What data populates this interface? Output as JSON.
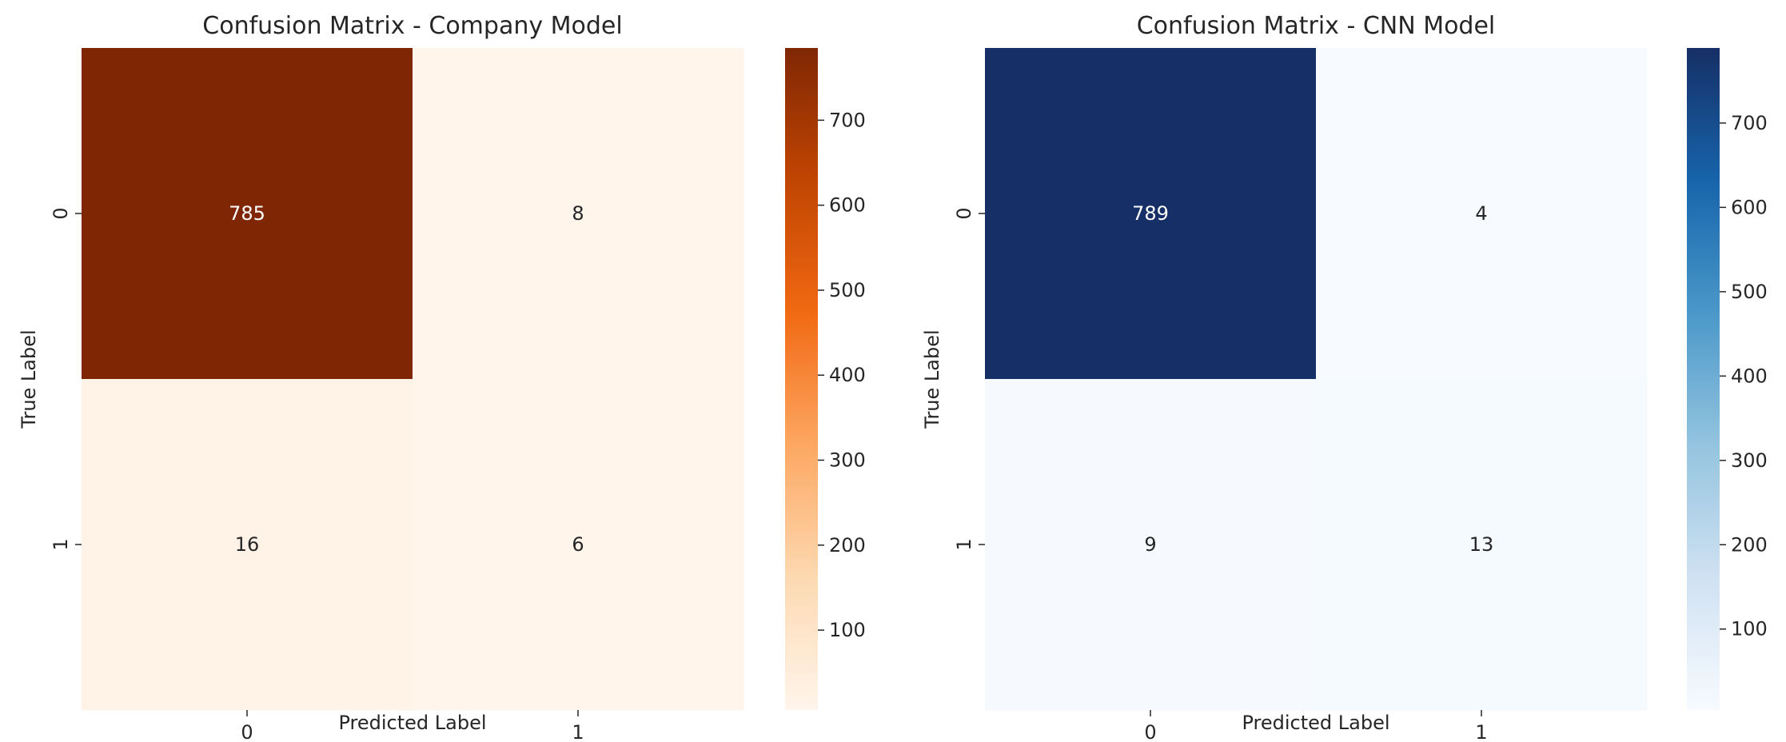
{
  "chart_data": [
    {
      "type": "heatmap",
      "title": "Confusion Matrix - Company Model",
      "xlabel": "Predicted Label",
      "ylabel": "True Label",
      "x_categories": [
        "0",
        "1"
      ],
      "y_categories": [
        "0",
        "1"
      ],
      "values": [
        [
          785,
          8
        ],
        [
          16,
          6
        ]
      ],
      "colormap": "Oranges",
      "color_stops": [
        "#fff5eb",
        "#fdd9b1",
        "#fda762",
        "#f16913",
        "#c14502",
        "#7f2704"
      ],
      "colorbar_range": [
        6,
        785
      ],
      "colorbar_ticks": [
        100,
        200,
        300,
        400,
        500,
        600,
        700
      ],
      "legend": "colorbar right"
    },
    {
      "type": "heatmap",
      "title": "Confusion Matrix - CNN Model",
      "xlabel": "Predicted Label",
      "ylabel": "True Label",
      "x_categories": [
        "0",
        "1"
      ],
      "y_categories": [
        "0",
        "1"
      ],
      "values": [
        [
          789,
          4
        ],
        [
          9,
          13
        ]
      ],
      "colormap": "Blues",
      "color_stops": [
        "#f7fbff",
        "#d0e1f2",
        "#94c4df",
        "#4a98c9",
        "#1764ab",
        "#162f66"
      ],
      "colorbar_range": [
        4,
        789
      ],
      "colorbar_ticks": [
        100,
        200,
        300,
        400,
        500,
        600,
        700
      ],
      "legend": "colorbar right"
    }
  ]
}
